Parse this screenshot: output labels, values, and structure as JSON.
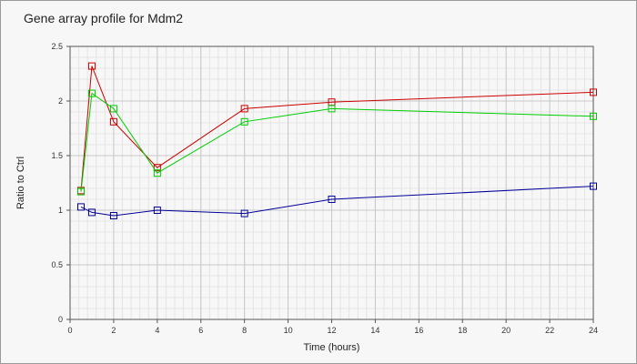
{
  "chart_data": {
    "type": "line",
    "title": "Gene array profile for Mdm2",
    "xlabel": "Time (hours)",
    "ylabel": "Ratio to Ctrl",
    "xlim": [
      0,
      24
    ],
    "ylim": [
      0,
      2.5
    ],
    "xticks": [
      0,
      2,
      4,
      6,
      8,
      10,
      12,
      14,
      16,
      18,
      20,
      22,
      24
    ],
    "yticks": [
      0,
      0.5,
      1,
      1.5,
      2,
      2.5
    ],
    "grid": true,
    "legend": "none",
    "marker": "square",
    "series": [
      {
        "color": "#cc0000",
        "x": [
          0.5,
          1,
          2,
          4,
          8,
          12,
          24
        ],
        "y": [
          1.18,
          2.32,
          1.81,
          1.39,
          1.93,
          1.99,
          2.08
        ]
      },
      {
        "color": "#00cc00",
        "x": [
          0.5,
          1,
          2,
          4,
          8,
          12,
          24
        ],
        "y": [
          1.17,
          2.07,
          1.93,
          1.34,
          1.81,
          1.93,
          1.86
        ]
      },
      {
        "color": "#000099",
        "x": [
          0.5,
          1,
          2,
          4,
          8,
          12,
          24
        ],
        "y": [
          1.03,
          0.98,
          0.95,
          1.0,
          0.97,
          1.1,
          1.22
        ]
      }
    ]
  }
}
